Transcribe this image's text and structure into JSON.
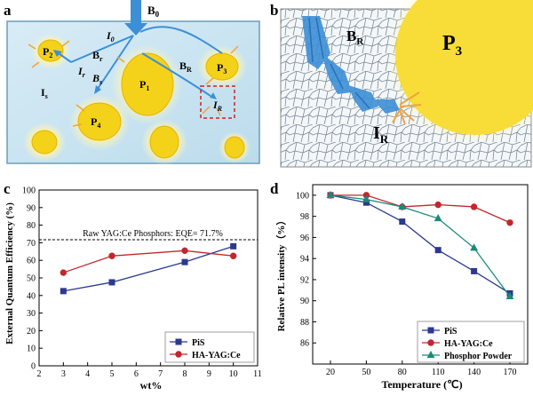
{
  "panels": {
    "a": {
      "letter": "a",
      "labels": {
        "B0": "B",
        "B0_sub": "0",
        "I0": "I",
        "I0_sub": "0",
        "Br": "B",
        "Br_sub": "r",
        "Ir": "I",
        "Ir_sub": "r",
        "Bs": "B",
        "Bs_sub": "s",
        "Is": "I",
        "Is_sub": "s",
        "BR": "B",
        "BR_sub": "R",
        "IR": "I",
        "IR_sub": "R",
        "P1": "P",
        "P1_sub": "1",
        "P2": "P",
        "P2_sub": "2",
        "P3": "P",
        "P3_sub": "3",
        "P4": "P",
        "P4_sub": "4"
      },
      "colors": {
        "matrix": "#cfe6f2",
        "phosphor": "#f3d21c",
        "glow": "#fff3a0",
        "blue_beam": "#3c8fd6",
        "orange_ray": "#f2a33a",
        "box": "#cc2222"
      }
    },
    "b": {
      "letter": "b",
      "labels": {
        "BR": "B",
        "BR_sub": "R",
        "P3": "P",
        "P3_sub": "3",
        "IR": "I",
        "IR_sub": "R"
      }
    },
    "c": {
      "letter": "c",
      "chart_data": {
        "type": "line",
        "xlabel": "wt%",
        "ylabel": "External Quantum Efficiency (%)",
        "xlim": [
          2,
          11
        ],
        "ylim": [
          0,
          100
        ],
        "xticks": [
          "2",
          "3",
          "4",
          "5",
          "6",
          "7",
          "8",
          "9",
          "10",
          "11"
        ],
        "yticks": [
          "0",
          "10",
          "20",
          "30",
          "40",
          "50",
          "60",
          "70",
          "80",
          "90",
          "100"
        ],
        "reference_line": {
          "y": 71.7,
          "label": "Raw YAG:Ce Phosphors: EQE= 71.7%"
        },
        "legend_position": "bottom-right",
        "x": [
          3,
          5,
          8,
          10
        ],
        "series": [
          {
            "name": "PiS",
            "values": [
              42.5,
              47.5,
              59,
              68
            ],
            "color": "#2b3990",
            "marker": "square"
          },
          {
            "name": "HA-YAG:Ce",
            "values": [
              53,
              62.5,
              65.5,
              62.5
            ],
            "color": "#c1272d",
            "marker": "circle"
          }
        ]
      }
    },
    "d": {
      "letter": "d",
      "chart_data": {
        "type": "line",
        "xlabel": "Temperature (℃)",
        "ylabel": "Relative PL intensity（%）",
        "ylim": [
          84,
          101
        ],
        "categories": [
          "20",
          "50",
          "80",
          "110",
          "140",
          "170"
        ],
        "yticks": [
          "86",
          "88",
          "90",
          "92",
          "94",
          "96",
          "98",
          "100"
        ],
        "legend_position": "bottom-right",
        "series": [
          {
            "name": "PiS",
            "values": [
              100,
              99.3,
              97.5,
              94.8,
              92.8,
              90.7
            ],
            "color": "#2b3990",
            "marker": "square"
          },
          {
            "name": "HA-YAG:Ce",
            "values": [
              100,
              100,
              98.9,
              99.1,
              98.9,
              97.4
            ],
            "color": "#c1272d",
            "marker": "circle"
          },
          {
            "name": "Phosphor Powder",
            "values": [
              100,
              99.6,
              98.9,
              97.8,
              95,
              90.4
            ],
            "color": "#1a8a7a",
            "marker": "triangle"
          }
        ]
      }
    }
  }
}
